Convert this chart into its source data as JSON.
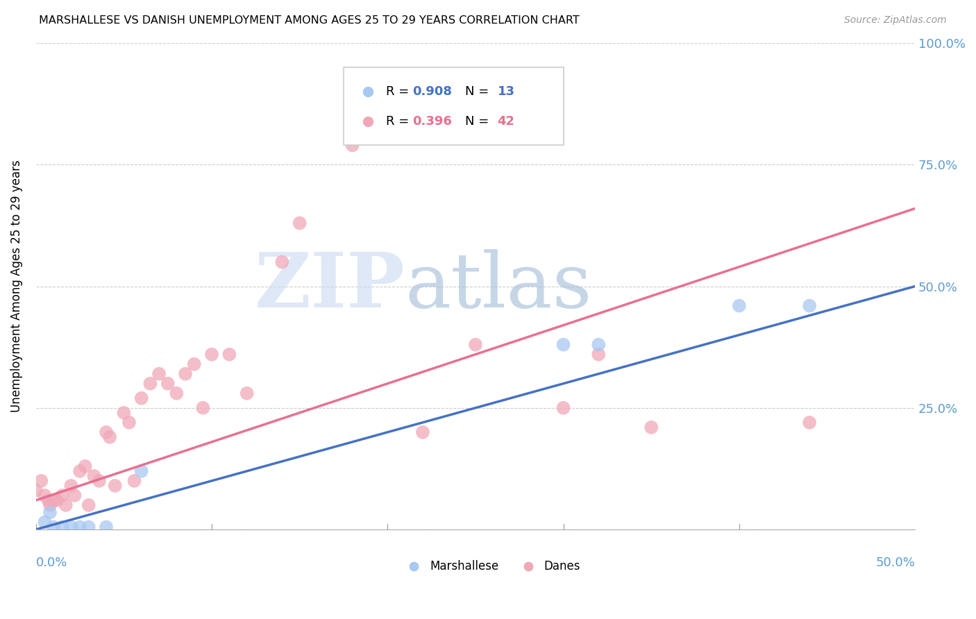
{
  "title": "MARSHALLESE VS DANISH UNEMPLOYMENT AMONG AGES 25 TO 29 YEARS CORRELATION CHART",
  "source": "Source: ZipAtlas.com",
  "ylabel": "Unemployment Among Ages 25 to 29 years",
  "xlim": [
    0.0,
    0.5
  ],
  "ylim": [
    0.0,
    1.0
  ],
  "yticks": [
    0.0,
    0.25,
    0.5,
    0.75,
    1.0
  ],
  "ytick_labels": [
    "",
    "25.0%",
    "50.0%",
    "75.0%",
    "100.0%"
  ],
  "marshallese_color": "#a8c8f0",
  "danes_color": "#f0a8b8",
  "marshallese_line_color": "#4472c4",
  "danes_line_color": "#e87090",
  "marshallese_R": 0.908,
  "marshallese_N": 13,
  "danes_R": 0.396,
  "danes_N": 42,
  "watermark_zip": "ZIP",
  "watermark_atlas": "atlas",
  "legend_marshallese": "Marshallese",
  "legend_danes": "Danes",
  "marshallese_x": [
    0.005,
    0.008,
    0.01,
    0.015,
    0.02,
    0.025,
    0.03,
    0.04,
    0.06,
    0.3,
    0.32,
    0.4,
    0.44
  ],
  "marshallese_y": [
    0.015,
    0.035,
    0.005,
    0.005,
    0.005,
    0.005,
    0.005,
    0.005,
    0.12,
    0.38,
    0.38,
    0.46,
    0.46
  ],
  "danes_x": [
    0.0,
    0.003,
    0.005,
    0.007,
    0.008,
    0.01,
    0.012,
    0.015,
    0.017,
    0.02,
    0.022,
    0.025,
    0.028,
    0.03,
    0.033,
    0.036,
    0.04,
    0.042,
    0.045,
    0.05,
    0.053,
    0.056,
    0.06,
    0.065,
    0.07,
    0.075,
    0.08,
    0.085,
    0.09,
    0.095,
    0.1,
    0.11,
    0.12,
    0.14,
    0.15,
    0.18,
    0.22,
    0.25,
    0.3,
    0.32,
    0.35,
    0.44
  ],
  "danes_y": [
    0.08,
    0.1,
    0.07,
    0.06,
    0.05,
    0.06,
    0.06,
    0.07,
    0.05,
    0.09,
    0.07,
    0.12,
    0.13,
    0.05,
    0.11,
    0.1,
    0.2,
    0.19,
    0.09,
    0.24,
    0.22,
    0.1,
    0.27,
    0.3,
    0.32,
    0.3,
    0.28,
    0.32,
    0.34,
    0.25,
    0.36,
    0.36,
    0.28,
    0.55,
    0.63,
    0.79,
    0.2,
    0.38,
    0.25,
    0.36,
    0.21,
    0.22
  ],
  "marshallese_line_x": [
    0.0,
    0.5
  ],
  "marshallese_line_y": [
    0.0,
    0.5
  ],
  "danes_line_x": [
    0.0,
    0.5
  ],
  "danes_line_y": [
    0.06,
    0.66
  ]
}
